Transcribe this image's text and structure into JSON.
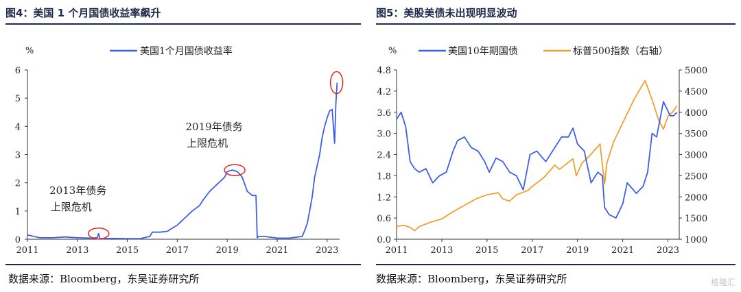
{
  "left_panel": {
    "title": "图4：美国 1 个月国债收益率飙升",
    "source": "数据来源：Bloomberg，东吴证券研究所"
  },
  "right_panel": {
    "title": "图5：美股美债未出现明显波动",
    "source": "数据来源：Bloomberg，东吴证券研究所"
  },
  "watermark": "格隆汇",
  "colors": {
    "blue": "#3d5fe6",
    "orange": "#f0a030",
    "red": "#e0261c",
    "navy": "#1f2a4a"
  },
  "chart_data": [
    {
      "type": "line",
      "ylabel": "%",
      "ylim": [
        0,
        6
      ],
      "yticks": [
        "0",
        "1",
        "2",
        "3",
        "4",
        "5",
        "6"
      ],
      "xlim": [
        2011,
        2023.5
      ],
      "xticks": [
        "2011",
        "2013",
        "2015",
        "2017",
        "2019",
        "2021",
        "2023"
      ],
      "legend_position": "top",
      "series": [
        {
          "name": "美国1个月国债收益率",
          "color": "#3d5fe6",
          "x": [
            2011,
            2011.5,
            2012,
            2012.5,
            2013,
            2013.5,
            2013.8,
            2013.85,
            2013.9,
            2014,
            2014.5,
            2015,
            2015.5,
            2015.9,
            2016,
            2016.3,
            2016.6,
            2016.9,
            2017,
            2017.3,
            2017.6,
            2017.9,
            2018,
            2018.3,
            2018.6,
            2018.9,
            2019,
            2019.2,
            2019.4,
            2019.6,
            2019.8,
            2020.0,
            2020.15,
            2020.2,
            2020.25,
            2020.5,
            2021,
            2021.5,
            2022,
            2022.1,
            2022.2,
            2022.3,
            2022.4,
            2022.5,
            2022.6,
            2022.7,
            2022.8,
            2022.9,
            2023.0,
            2023.1,
            2023.2,
            2023.3,
            2023.35,
            2023.4
          ],
          "values": [
            0.15,
            0.05,
            0.05,
            0.08,
            0.05,
            0.04,
            0.05,
            0.2,
            0.03,
            0.02,
            0.03,
            0.02,
            0.02,
            0.1,
            0.25,
            0.25,
            0.28,
            0.45,
            0.5,
            0.75,
            1.0,
            1.2,
            1.35,
            1.7,
            1.95,
            2.2,
            2.4,
            2.45,
            2.4,
            2.2,
            1.7,
            1.55,
            1.55,
            0.05,
            0.1,
            0.1,
            0.04,
            0.04,
            0.1,
            0.3,
            0.55,
            1.0,
            1.5,
            2.2,
            2.6,
            3.0,
            3.6,
            4.0,
            4.3,
            4.55,
            4.6,
            3.4,
            4.8,
            5.55
          ]
        }
      ],
      "annotations": [
        {
          "text_line1": "2013年债务",
          "text_line2": "上限危机",
          "x": 2013.85,
          "y": 0.2
        },
        {
          "text_line1": "2019年债务",
          "text_line2": "上限危机",
          "x": 2019.3,
          "y": 2.45
        },
        {
          "text_line1": "",
          "text_line2": "",
          "x": 2023.38,
          "y": 5.55
        }
      ]
    },
    {
      "type": "line",
      "ylabel": "%",
      "ylim": [
        0,
        4.8
      ],
      "yticks": [
        "0.0",
        "0.6",
        "1.2",
        "1.8",
        "2.4",
        "3.0",
        "3.6",
        "4.2",
        "4.8"
      ],
      "y2lim": [
        1000,
        5000
      ],
      "y2ticks": [
        "1000",
        "1500",
        "2000",
        "2500",
        "3000",
        "3500",
        "4000",
        "4500",
        "5000"
      ],
      "xlim": [
        2011,
        2023.5
      ],
      "xticks": [
        "2011",
        "2013",
        "2015",
        "2017",
        "2019",
        "2021",
        "2023"
      ],
      "legend_position": "top",
      "series": [
        {
          "name": "美国10年期国债",
          "axis": "left",
          "color": "#3d5fe6",
          "x": [
            2011,
            2011.2,
            2011.4,
            2011.6,
            2011.8,
            2012,
            2012.3,
            2012.6,
            2012.9,
            2013.2,
            2013.5,
            2013.7,
            2014,
            2014.3,
            2014.6,
            2014.9,
            2015.1,
            2015.4,
            2015.7,
            2016,
            2016.3,
            2016.6,
            2016.9,
            2017.2,
            2017.6,
            2018,
            2018.3,
            2018.6,
            2018.8,
            2019,
            2019.3,
            2019.6,
            2019.9,
            2020.1,
            2020.2,
            2020.4,
            2020.7,
            2021,
            2021.2,
            2021.6,
            2021.9,
            2022.1,
            2022.3,
            2022.5,
            2022.8,
            2022.95,
            2023.1,
            2023.25,
            2023.4
          ],
          "values": [
            3.4,
            3.6,
            3.2,
            2.2,
            2.0,
            1.9,
            2.0,
            1.6,
            1.8,
            1.9,
            2.5,
            2.8,
            2.9,
            2.6,
            2.5,
            2.2,
            1.9,
            2.3,
            2.2,
            1.9,
            1.8,
            1.4,
            2.4,
            2.5,
            2.2,
            2.6,
            2.9,
            2.9,
            3.15,
            2.7,
            2.5,
            1.6,
            1.9,
            1.8,
            0.9,
            0.7,
            0.6,
            1.0,
            1.6,
            1.3,
            1.5,
            1.9,
            3.0,
            2.9,
            3.9,
            3.7,
            3.5,
            3.5,
            3.6
          ]
        },
        {
          "name": "标普500指数（右轴）",
          "axis": "right",
          "color": "#f0a030",
          "x": [
            2011,
            2011.3,
            2011.6,
            2011.8,
            2012,
            2012.5,
            2013,
            2013.5,
            2014,
            2014.5,
            2015,
            2015.5,
            2015.7,
            2016,
            2016.3,
            2016.8,
            2017,
            2017.5,
            2018,
            2018.2,
            2018.8,
            2018.95,
            2019.2,
            2019.5,
            2020,
            2020.2,
            2020.3,
            2020.6,
            2021,
            2021.5,
            2021.99,
            2022.3,
            2022.6,
            2022.8,
            2023,
            2023.2,
            2023.4
          ],
          "values": [
            1300,
            1330,
            1280,
            1200,
            1300,
            1400,
            1480,
            1650,
            1800,
            1950,
            2050,
            2100,
            1950,
            1900,
            2050,
            2150,
            2250,
            2450,
            2750,
            2650,
            2900,
            2500,
            2800,
            2950,
            3250,
            2300,
            2800,
            3300,
            3750,
            4300,
            4750,
            4300,
            3800,
            3600,
            3900,
            4000,
            4150
          ]
        }
      ]
    }
  ]
}
